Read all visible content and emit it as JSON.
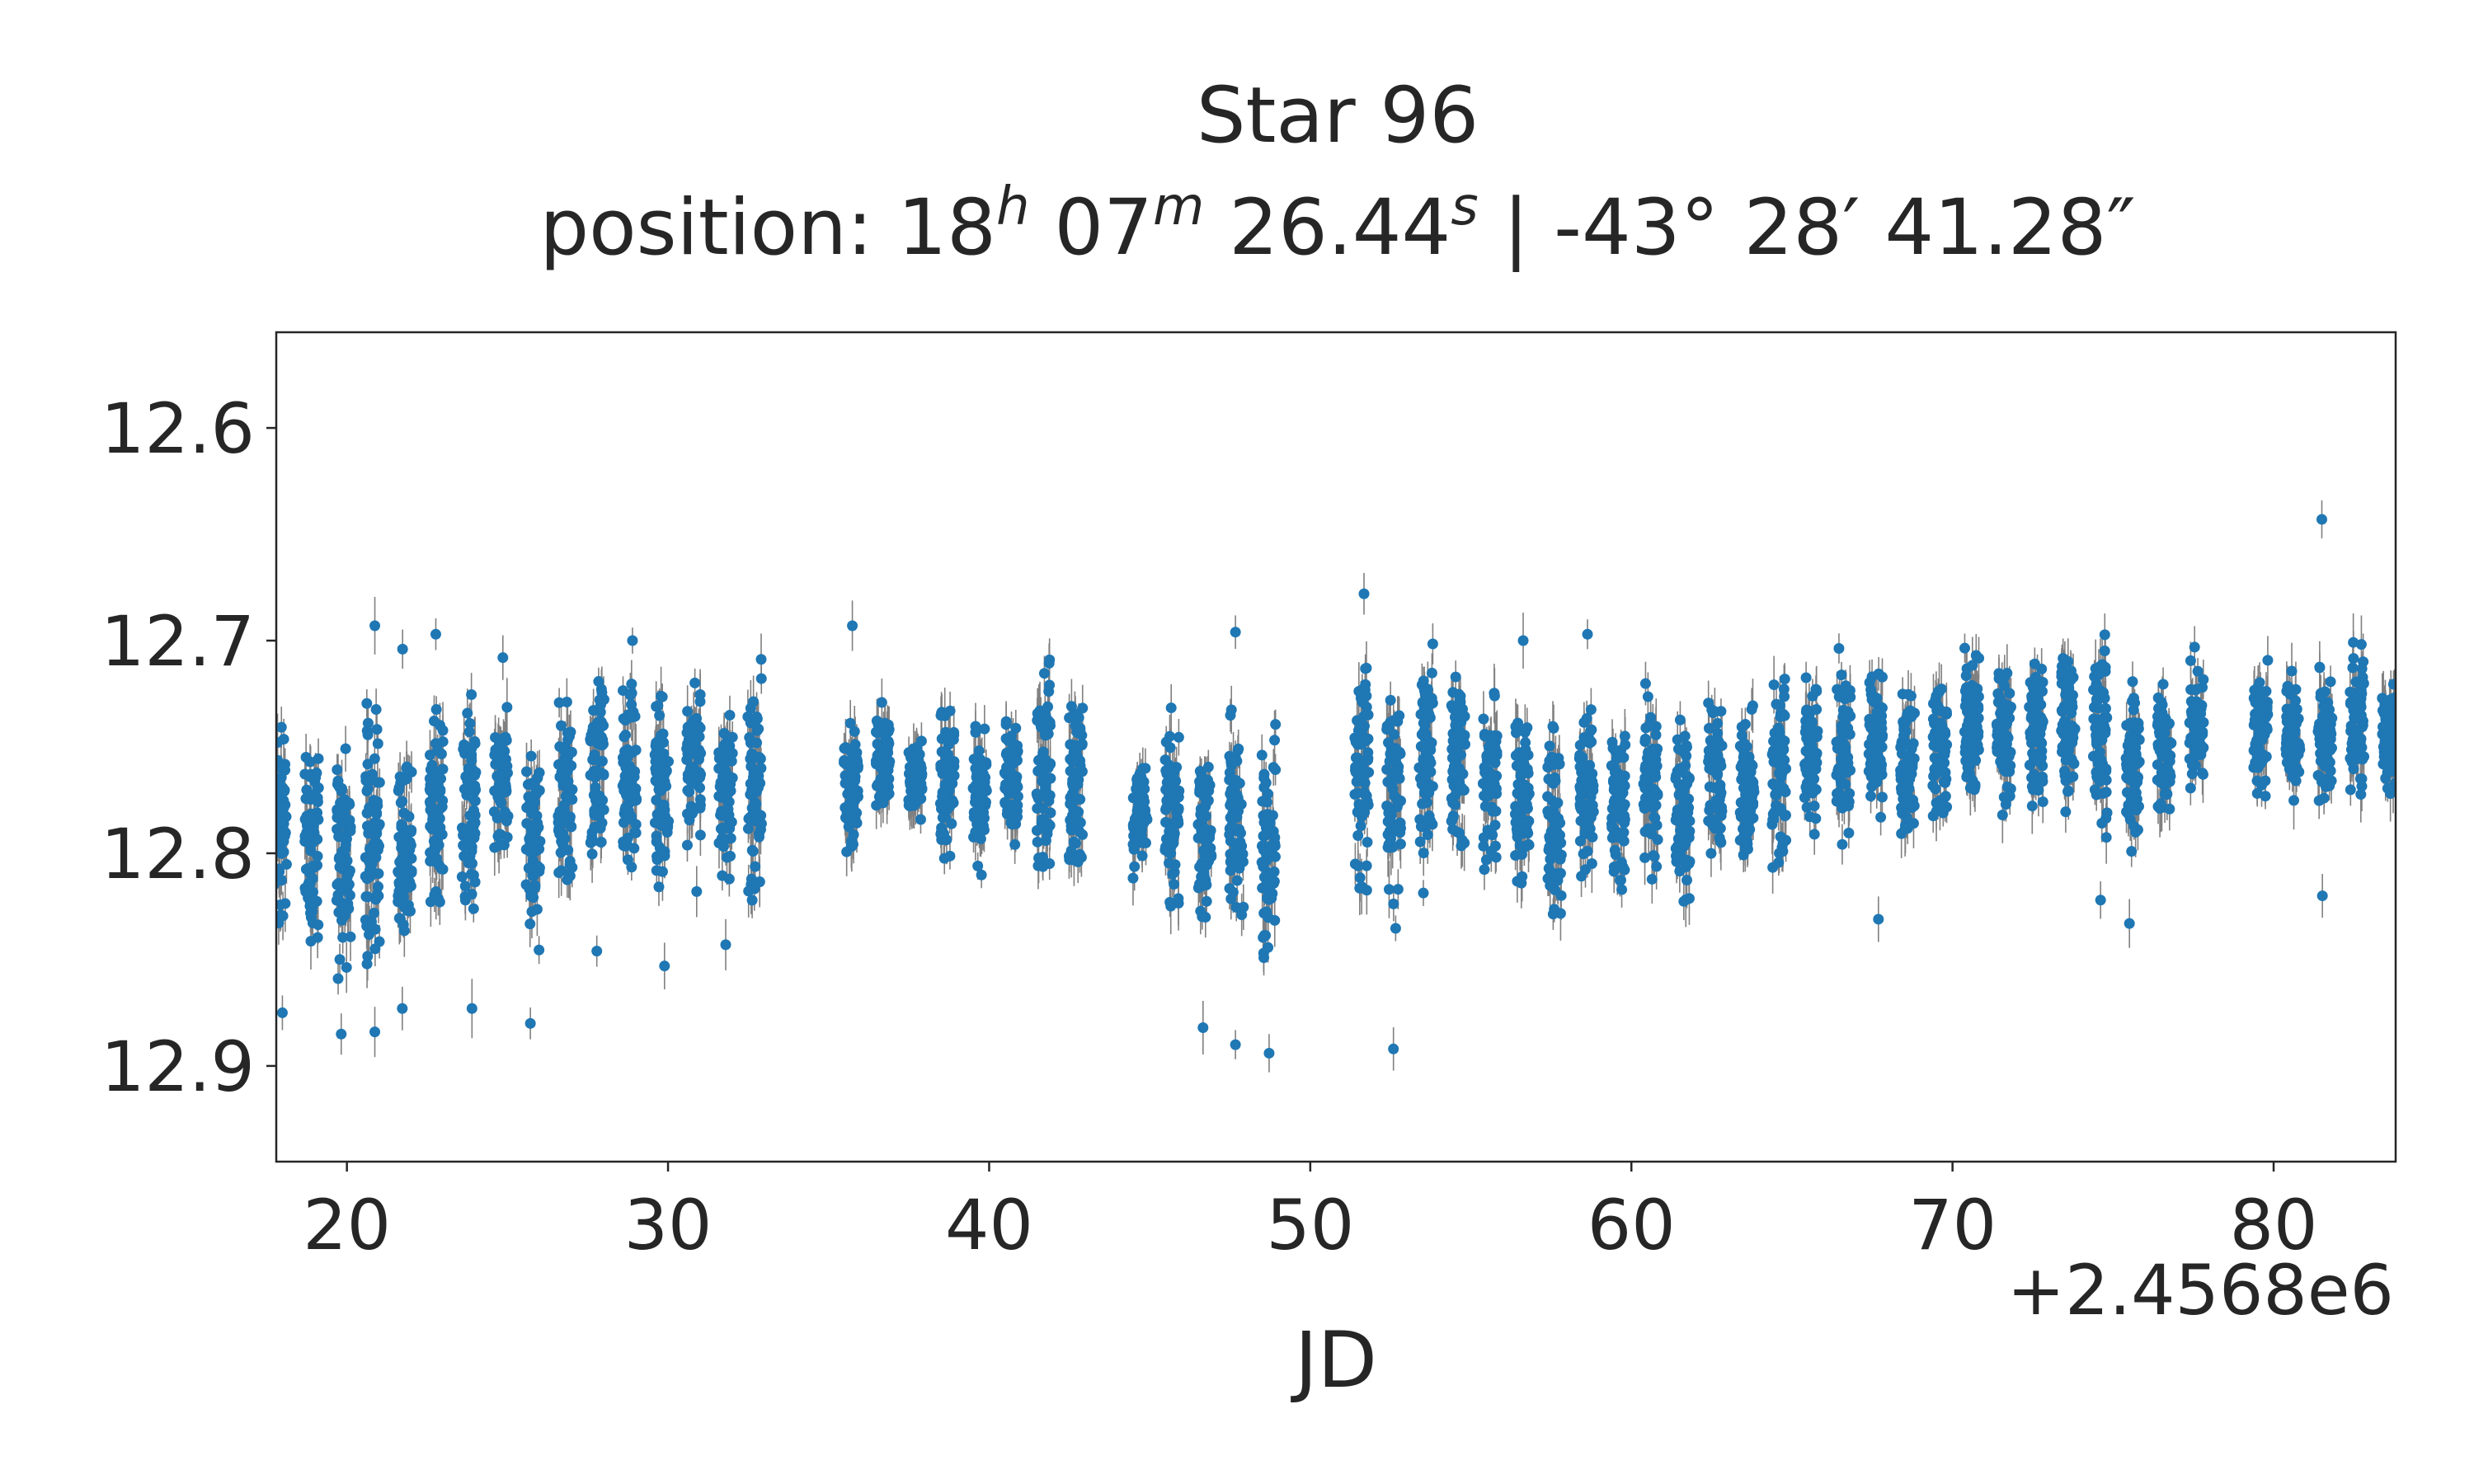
{
  "chart_data": {
    "type": "scatter",
    "title_line1": "Star 96",
    "title_line2": {
      "prefix": "position: 18",
      "h_sup": "h",
      "part2": " 07",
      "m_sup": "m",
      "part3": " 26.44",
      "s_sup": "s",
      "dec": " | -43° 28′ 41.28″"
    },
    "xlabel": "JD",
    "x_offset_label": "+2.4568e6",
    "ylabel": "",
    "xlim": [
      17.8,
      83.8
    ],
    "ylim": [
      12.945,
      12.555
    ],
    "y_inverted": true,
    "xticks": [
      20,
      30,
      40,
      50,
      60,
      70,
      80
    ],
    "xtick_labels": [
      "20",
      "30",
      "40",
      "50",
      "60",
      "70",
      "80"
    ],
    "yticks": [
      12.6,
      12.7,
      12.8,
      12.9
    ],
    "ytick_labels": [
      "12.6",
      "12.7",
      "12.8",
      "12.9"
    ],
    "grid": false,
    "legend": false,
    "colors": {
      "points": "#1f77b4",
      "errorbars": "#808080",
      "text": "#262626",
      "axes": "#262626"
    },
    "series": [
      {
        "typical_error": 0.01,
        "columns": [
          {
            "x": 17.9,
            "min": 12.72,
            "max": 12.85,
            "outliers": [
              12.875
            ]
          },
          {
            "x": 18.9,
            "min": 12.74,
            "max": 12.86,
            "outliers": []
          },
          {
            "x": 19.9,
            "min": 12.73,
            "max": 12.87,
            "outliers": [
              12.885
            ]
          },
          {
            "x": 20.8,
            "min": 12.72,
            "max": 12.87,
            "outliers": [
              12.693,
              12.884
            ]
          },
          {
            "x": 21.8,
            "min": 12.74,
            "max": 12.86,
            "outliers": [
              12.704,
              12.873
            ]
          },
          {
            "x": 22.8,
            "min": 12.71,
            "max": 12.85,
            "outliers": [
              12.697
            ]
          },
          {
            "x": 23.8,
            "min": 12.71,
            "max": 12.85,
            "outliers": [
              12.873
            ]
          },
          {
            "x": 24.8,
            "min": 12.72,
            "max": 12.81,
            "outliers": [
              12.708
            ]
          },
          {
            "x": 25.8,
            "min": 12.74,
            "max": 12.86,
            "outliers": [
              12.88
            ]
          },
          {
            "x": 26.8,
            "min": 12.72,
            "max": 12.83,
            "outliers": []
          },
          {
            "x": 27.8,
            "min": 12.69,
            "max": 12.83,
            "outliers": [
              12.846
            ]
          },
          {
            "x": 28.8,
            "min": 12.71,
            "max": 12.82,
            "outliers": [
              12.7
            ]
          },
          {
            "x": 29.8,
            "min": 12.71,
            "max": 12.83,
            "outliers": [
              12.853
            ]
          },
          {
            "x": 30.8,
            "min": 12.71,
            "max": 12.8,
            "outliers": [
              12.818
            ]
          },
          {
            "x": 31.8,
            "min": 12.71,
            "max": 12.83,
            "outliers": [
              12.843
            ]
          },
          {
            "x": 32.7,
            "min": 12.7,
            "max": 12.84,
            "outliers": []
          },
          {
            "x": 35.7,
            "min": 12.73,
            "max": 12.81,
            "outliers": [
              12.693
            ]
          },
          {
            "x": 36.7,
            "min": 12.72,
            "max": 12.79,
            "outliers": []
          },
          {
            "x": 37.7,
            "min": 12.74,
            "max": 12.79,
            "outliers": []
          },
          {
            "x": 38.7,
            "min": 12.72,
            "max": 12.81,
            "outliers": []
          },
          {
            "x": 39.7,
            "min": 12.73,
            "max": 12.82,
            "outliers": []
          },
          {
            "x": 40.7,
            "min": 12.72,
            "max": 12.81,
            "outliers": []
          },
          {
            "x": 41.7,
            "min": 12.69,
            "max": 12.83,
            "outliers": []
          },
          {
            "x": 42.7,
            "min": 12.7,
            "max": 12.83,
            "outliers": []
          },
          {
            "x": 44.7,
            "min": 12.74,
            "max": 12.82,
            "outliers": []
          },
          {
            "x": 45.7,
            "min": 12.72,
            "max": 12.84,
            "outliers": []
          },
          {
            "x": 46.7,
            "min": 12.73,
            "max": 12.85,
            "outliers": [
              12.882
            ]
          },
          {
            "x": 47.7,
            "min": 12.72,
            "max": 12.85,
            "outliers": [
              12.696,
              12.89
            ]
          },
          {
            "x": 48.7,
            "min": 12.73,
            "max": 12.87,
            "outliers": [
              12.894
            ]
          },
          {
            "x": 51.6,
            "min": 12.69,
            "max": 12.83,
            "outliers": [
              12.678
            ]
          },
          {
            "x": 52.6,
            "min": 12.7,
            "max": 12.84,
            "outliers": [
              12.892
            ]
          },
          {
            "x": 53.6,
            "min": 12.69,
            "max": 12.83,
            "outliers": []
          },
          {
            "x": 54.6,
            "min": 12.7,
            "max": 12.82,
            "outliers": []
          },
          {
            "x": 55.6,
            "min": 12.71,
            "max": 12.82,
            "outliers": []
          },
          {
            "x": 56.6,
            "min": 12.72,
            "max": 12.83,
            "outliers": [
              12.7
            ]
          },
          {
            "x": 57.6,
            "min": 12.73,
            "max": 12.84,
            "outliers": []
          },
          {
            "x": 58.6,
            "min": 12.72,
            "max": 12.82,
            "outliers": [
              12.697
            ]
          },
          {
            "x": 59.6,
            "min": 12.73,
            "max": 12.83,
            "outliers": []
          },
          {
            "x": 60.6,
            "min": 12.71,
            "max": 12.83,
            "outliers": []
          },
          {
            "x": 61.6,
            "min": 12.72,
            "max": 12.84,
            "outliers": []
          },
          {
            "x": 62.6,
            "min": 12.71,
            "max": 12.82,
            "outliers": []
          },
          {
            "x": 63.6,
            "min": 12.72,
            "max": 12.82,
            "outliers": []
          },
          {
            "x": 64.6,
            "min": 12.7,
            "max": 12.82,
            "outliers": []
          },
          {
            "x": 65.6,
            "min": 12.7,
            "max": 12.8,
            "outliers": []
          },
          {
            "x": 66.6,
            "min": 12.7,
            "max": 12.8,
            "outliers": []
          },
          {
            "x": 67.6,
            "min": 12.7,
            "max": 12.79,
            "outliers": [
              12.831
            ]
          },
          {
            "x": 68.6,
            "min": 12.71,
            "max": 12.81,
            "outliers": []
          },
          {
            "x": 69.6,
            "min": 12.7,
            "max": 12.8,
            "outliers": []
          },
          {
            "x": 70.6,
            "min": 12.69,
            "max": 12.79,
            "outliers": []
          },
          {
            "x": 71.6,
            "min": 12.7,
            "max": 12.79,
            "outliers": []
          },
          {
            "x": 72.6,
            "min": 12.69,
            "max": 12.79,
            "outliers": []
          },
          {
            "x": 73.6,
            "min": 12.69,
            "max": 12.79,
            "outliers": []
          },
          {
            "x": 74.6,
            "min": 12.69,
            "max": 12.8,
            "outliers": [
              12.822
            ]
          },
          {
            "x": 75.6,
            "min": 12.7,
            "max": 12.81,
            "outliers": [
              12.833
            ]
          },
          {
            "x": 76.6,
            "min": 12.71,
            "max": 12.8,
            "outliers": []
          },
          {
            "x": 77.6,
            "min": 12.7,
            "max": 12.78,
            "outliers": []
          },
          {
            "x": 79.6,
            "min": 12.7,
            "max": 12.79,
            "outliers": []
          },
          {
            "x": 80.6,
            "min": 12.71,
            "max": 12.78,
            "outliers": []
          },
          {
            "x": 81.6,
            "min": 12.7,
            "max": 12.79,
            "outliers": [
              12.643,
              12.82
            ]
          },
          {
            "x": 82.6,
            "min": 12.69,
            "max": 12.78,
            "outliers": []
          },
          {
            "x": 83.6,
            "min": 12.71,
            "max": 12.78,
            "outliers": []
          }
        ]
      }
    ]
  }
}
